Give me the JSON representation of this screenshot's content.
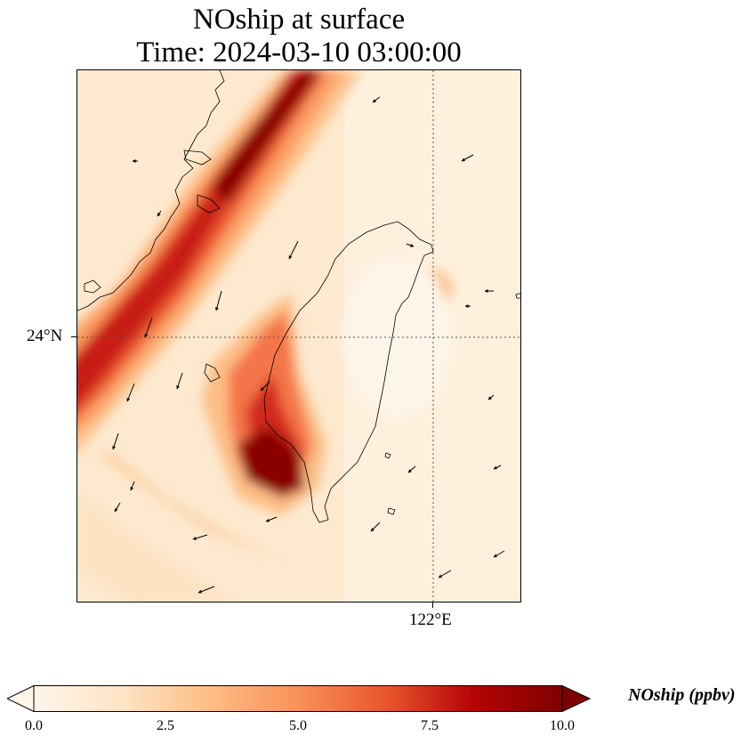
{
  "title": {
    "line1": "NOship at surface",
    "line2": "Time: 2024-03-10 03:00:00"
  },
  "axes": {
    "lat_label": "24°N",
    "lon_label": "122°E"
  },
  "colorbar": {
    "label": "NOship (ppbv)",
    "ticks": [
      "0.0",
      "2.5",
      "5.0",
      "7.5",
      "10.0"
    ],
    "min": 0,
    "max": 10,
    "extend": "both",
    "colors": [
      "#fff5eb",
      "#fdd9b4",
      "#fdae6b",
      "#f16913",
      "#d7301f",
      "#b30000",
      "#7f0000"
    ]
  },
  "map": {
    "field": "NOship",
    "units": "ppbv",
    "region": "Taiwan Strait",
    "gridlines": "dotted",
    "wind_vectors": "black arrows",
    "features": [
      "coastlines",
      "Taiwan",
      "Fujian coast",
      "penghu islands"
    ]
  }
}
